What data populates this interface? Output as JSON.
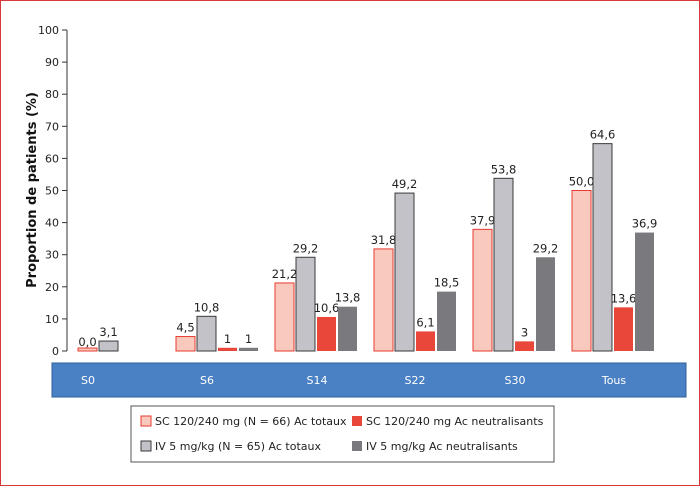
{
  "chart_data": {
    "type": "bar",
    "ylabel": "Proportion de patients (%)",
    "ylim": [
      0,
      100
    ],
    "yticks": [
      0,
      10,
      20,
      30,
      40,
      50,
      60,
      70,
      80,
      90,
      100
    ],
    "categories": [
      "S0",
      "S6",
      "S14",
      "S22",
      "S30",
      "Tous"
    ],
    "series": [
      {
        "name": "SC 120/240 mg (N = 66) Ac totaux",
        "color": "#f9c9bd",
        "stroke": "#e83a2f",
        "values": [
          0.0,
          4.5,
          21.2,
          31.8,
          37.9,
          50.0
        ],
        "labels": [
          "0,0",
          "4,5",
          "21,2",
          "31,8",
          "37,9",
          "50,0"
        ]
      },
      {
        "name": "IV 5 mg/kg (N = 65)  Ac totaux",
        "color": "#c3c2c8",
        "stroke": "#3a3a3a",
        "values": [
          3.1,
          10.8,
          29.2,
          49.2,
          53.8,
          64.6
        ],
        "labels": [
          "3,1",
          "10,8",
          "29,2",
          "49,2",
          "53,8",
          "64,6"
        ]
      },
      {
        "name": "SC 120/240 mg Ac neutralisants",
        "color": "#e8473a",
        "stroke": "",
        "values": [
          null,
          1,
          10.6,
          6.1,
          3,
          13.6
        ],
        "labels": [
          "",
          "1",
          "10,6",
          "6,1",
          "3",
          "13,6"
        ]
      },
      {
        "name": "IV 5 mg/kg Ac neutralisants",
        "color": "#7a7a7e",
        "stroke": "",
        "values": [
          null,
          1,
          13.8,
          18.5,
          29.2,
          36.9
        ],
        "labels": [
          "",
          "1",
          "13,8",
          "18,5",
          "29,2",
          "36,9"
        ]
      }
    ],
    "category_band_color": "#4a80c4",
    "legend_placement": "bottom-center",
    "grid": false
  }
}
